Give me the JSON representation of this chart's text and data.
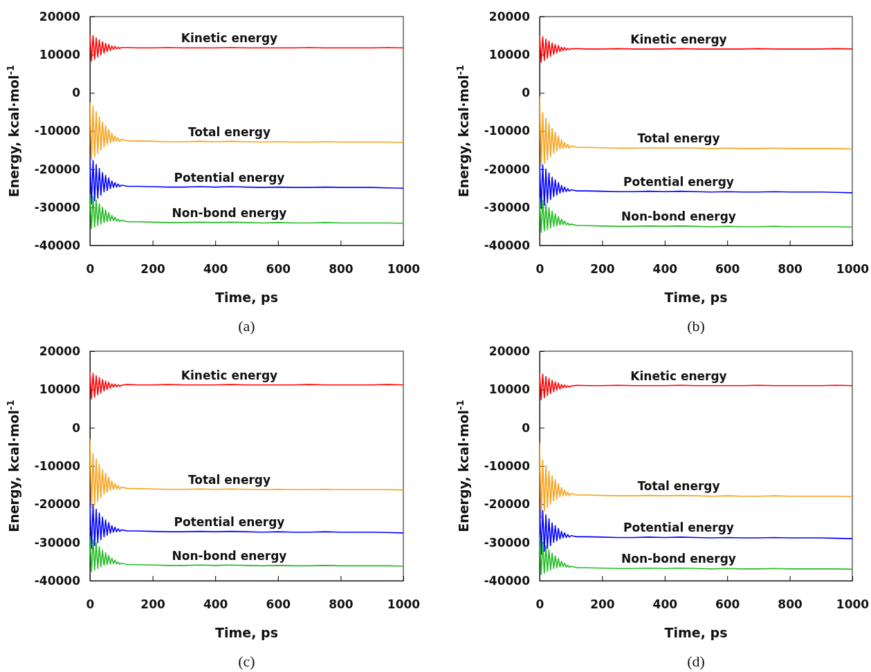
{
  "chart_data": [
    {
      "type": "line",
      "xlabel": "Time, ps",
      "ylabel": "Energy, kcal·mol$^{-1}$",
      "annotations": [
        "(a)"
      ],
      "x": [
        0,
        5,
        10,
        15,
        20,
        25,
        30,
        35,
        40,
        45,
        50,
        55,
        60,
        65,
        70,
        75,
        80,
        85,
        90,
        95,
        100,
        120,
        150,
        200,
        250,
        300,
        350,
        400,
        450,
        500,
        550,
        600,
        650,
        700,
        750,
        800,
        850,
        900,
        950,
        1000
      ],
      "xlim": [
        0,
        1000
      ],
      "xticks": [
        0,
        200,
        400,
        600,
        800,
        1000
      ],
      "ylim": [
        -40000,
        20000
      ],
      "yticks": [
        -40000,
        -30000,
        -20000,
        -10000,
        0,
        10000,
        20000
      ],
      "series": [
        {
          "name": "Kinetic energy",
          "color": "#ff0000",
          "values": [
            15300,
            8300,
            15000,
            8800,
            14400,
            9400,
            13900,
            9900,
            13400,
            10400,
            13000,
            10800,
            12700,
            11100,
            12300,
            11400,
            12200,
            11500,
            12000,
            11600,
            11900,
            11900,
            11800,
            11800,
            11900,
            11800,
            11800,
            11800,
            11900,
            11800,
            11800,
            11800,
            11800,
            11900,
            11800,
            11800,
            11800,
            11800,
            11900,
            11800
          ]
        },
        {
          "name": "Total energy",
          "color": "#f7a21b",
          "values": [
            -2500,
            -17600,
            -3500,
            -16800,
            -4900,
            -15900,
            -6300,
            -15000,
            -7600,
            -14100,
            -8600,
            -13600,
            -9600,
            -13100,
            -10600,
            -12800,
            -11300,
            -12700,
            -11800,
            -12800,
            -12200,
            -12600,
            -12600,
            -12700,
            -12800,
            -12800,
            -12700,
            -12800,
            -12700,
            -12800,
            -12900,
            -12800,
            -12900,
            -12900,
            -12800,
            -12900,
            -12900,
            -12900,
            -12900,
            -13000
          ]
        },
        {
          "name": "Potential energy",
          "color": "#0000ff",
          "values": [
            -17000,
            -29100,
            -17700,
            -28300,
            -18800,
            -27600,
            -19800,
            -26800,
            -20900,
            -26000,
            -21600,
            -25600,
            -22300,
            -25100,
            -23100,
            -24800,
            -23500,
            -24700,
            -23900,
            -24600,
            -24200,
            -24500,
            -24500,
            -24600,
            -24700,
            -24700,
            -24600,
            -24700,
            -24600,
            -24700,
            -24800,
            -24700,
            -24800,
            -24800,
            -24700,
            -24800,
            -24800,
            -24800,
            -24900,
            -25000
          ]
        },
        {
          "name": "Non-bond energy",
          "color": "#22bb22",
          "values": [
            -26500,
            -35600,
            -27200,
            -35200,
            -28100,
            -34800,
            -29100,
            -34400,
            -30000,
            -34000,
            -30700,
            -33800,
            -31400,
            -33600,
            -32100,
            -33500,
            -32600,
            -33600,
            -33100,
            -33700,
            -33400,
            -33800,
            -33800,
            -33900,
            -34000,
            -34000,
            -33900,
            -34000,
            -33900,
            -34000,
            -34100,
            -34000,
            -34100,
            -34100,
            -34000,
            -34100,
            -34100,
            -34100,
            -34100,
            -34200
          ]
        }
      ]
    },
    {
      "type": "line",
      "xlabel": "Time, ps",
      "ylabel": "Energy, kcal·mol$^{-1}$",
      "annotations": [
        "(b)"
      ],
      "x": [
        0,
        5,
        10,
        15,
        20,
        25,
        30,
        35,
        40,
        45,
        50,
        55,
        60,
        65,
        70,
        75,
        80,
        85,
        90,
        95,
        100,
        120,
        150,
        200,
        250,
        300,
        350,
        400,
        450,
        500,
        550,
        600,
        650,
        700,
        750,
        800,
        850,
        900,
        950,
        1000
      ],
      "xlim": [
        0,
        1000
      ],
      "xticks": [
        0,
        200,
        400,
        600,
        800,
        1000
      ],
      "ylim": [
        -40000,
        20000
      ],
      "yticks": [
        -40000,
        -30000,
        -20000,
        -10000,
        0,
        10000,
        20000
      ],
      "series": [
        {
          "name": "Kinetic energy",
          "color": "#ff0000",
          "values": [
            15000,
            8000,
            14700,
            8500,
            14100,
            9100,
            13600,
            9600,
            13100,
            10100,
            12700,
            10500,
            12400,
            10800,
            12000,
            11100,
            11900,
            11200,
            11700,
            11300,
            11600,
            11600,
            11500,
            11500,
            11600,
            11500,
            11500,
            11500,
            11600,
            11500,
            11500,
            11500,
            11500,
            11600,
            11500,
            11500,
            11500,
            11500,
            11600,
            11500
          ]
        },
        {
          "name": "Total energy",
          "color": "#f7a21b",
          "values": [
            -1000,
            -19300,
            -5200,
            -18500,
            -6600,
            -17600,
            -8000,
            -16700,
            -9300,
            -15800,
            -10300,
            -15300,
            -11300,
            -14800,
            -12300,
            -14500,
            -13000,
            -14400,
            -13500,
            -14500,
            -13900,
            -14300,
            -14300,
            -14400,
            -14500,
            -14500,
            -14400,
            -14500,
            -14400,
            -14500,
            -14600,
            -14500,
            -14600,
            -14600,
            -14500,
            -14600,
            -14600,
            -14600,
            -14600,
            -14700
          ]
        },
        {
          "name": "Potential energy",
          "color": "#0000ff",
          "values": [
            -18200,
            -30300,
            -18900,
            -29500,
            -20000,
            -28800,
            -21000,
            -28000,
            -22100,
            -27200,
            -22800,
            -26800,
            -23500,
            -26300,
            -24300,
            -26000,
            -24700,
            -25900,
            -25100,
            -25800,
            -25400,
            -25700,
            -25700,
            -25800,
            -25900,
            -25900,
            -25800,
            -25900,
            -25800,
            -25900,
            -26000,
            -25900,
            -26000,
            -26000,
            -25900,
            -26000,
            -26000,
            -26000,
            -26100,
            -26200
          ]
        },
        {
          "name": "Non-bond energy",
          "color": "#22bb22",
          "values": [
            -27500,
            -36600,
            -28200,
            -36200,
            -29100,
            -35800,
            -30100,
            -35400,
            -31000,
            -35000,
            -31700,
            -34800,
            -32400,
            -34600,
            -33100,
            -34500,
            -33600,
            -34600,
            -34100,
            -34700,
            -34400,
            -34800,
            -34800,
            -34900,
            -35000,
            -35000,
            -34900,
            -35000,
            -34900,
            -35000,
            -35100,
            -35000,
            -35100,
            -35100,
            -35000,
            -35100,
            -35100,
            -35100,
            -35100,
            -35200
          ]
        }
      ]
    },
    {
      "type": "line",
      "xlabel": "Time, ps",
      "ylabel": "Energy, kcal·mol$^{-1}$",
      "annotations": [
        "(c)"
      ],
      "x": [
        0,
        5,
        10,
        15,
        20,
        25,
        30,
        35,
        40,
        45,
        50,
        55,
        60,
        65,
        70,
        75,
        80,
        85,
        90,
        95,
        100,
        120,
        150,
        200,
        250,
        300,
        350,
        400,
        450,
        500,
        550,
        600,
        650,
        700,
        750,
        800,
        850,
        900,
        950,
        1000
      ],
      "xlim": [
        0,
        1000
      ],
      "xticks": [
        0,
        200,
        400,
        600,
        800,
        1000
      ],
      "ylim": [
        -40000,
        20000
      ],
      "yticks": [
        -40000,
        -30000,
        -20000,
        -10000,
        0,
        10000,
        20000
      ],
      "series": [
        {
          "name": "Kinetic energy",
          "color": "#ff0000",
          "values": [
            14500,
            7500,
            14200,
            8000,
            13600,
            8600,
            13100,
            9100,
            12600,
            9600,
            12200,
            10000,
            11900,
            10300,
            11500,
            10600,
            11400,
            10700,
            11200,
            10800,
            11100,
            11300,
            11200,
            11200,
            11300,
            11200,
            11200,
            11200,
            11300,
            11200,
            11200,
            11200,
            11200,
            11300,
            11200,
            11200,
            11200,
            11200,
            11300,
            11200
          ]
        },
        {
          "name": "Total energy",
          "color": "#f7a21b",
          "values": [
            -3000,
            -20900,
            -6800,
            -20100,
            -8200,
            -19200,
            -9600,
            -18300,
            -10900,
            -17400,
            -11900,
            -16900,
            -12900,
            -16400,
            -13900,
            -16100,
            -14600,
            -16000,
            -15100,
            -16100,
            -15500,
            -15900,
            -15900,
            -16000,
            -16100,
            -16100,
            -16000,
            -16100,
            -16000,
            -16100,
            -16200,
            -16100,
            -16200,
            -16200,
            -16100,
            -16200,
            -16200,
            -16200,
            -16200,
            -16300
          ]
        },
        {
          "name": "Potential energy",
          "color": "#0000ff",
          "values": [
            -19500,
            -31600,
            -20200,
            -30800,
            -21300,
            -30100,
            -22300,
            -29300,
            -23400,
            -28500,
            -24100,
            -28100,
            -24800,
            -27600,
            -25600,
            -27300,
            -26000,
            -27200,
            -26400,
            -27100,
            -26700,
            -27000,
            -27000,
            -27100,
            -27200,
            -27200,
            -27100,
            -27200,
            -27100,
            -27200,
            -27300,
            -27200,
            -27300,
            -27300,
            -27200,
            -27300,
            -27300,
            -27300,
            -27400,
            -27500
          ]
        },
        {
          "name": "Non-bond energy",
          "color": "#22bb22",
          "values": [
            -28500,
            -37600,
            -29200,
            -37200,
            -30100,
            -36800,
            -31100,
            -36400,
            -32000,
            -36000,
            -32700,
            -35800,
            -33400,
            -35600,
            -34100,
            -35500,
            -34600,
            -35600,
            -35100,
            -35700,
            -35400,
            -35800,
            -35800,
            -35900,
            -36000,
            -36000,
            -35900,
            -36000,
            -35900,
            -36000,
            -36100,
            -36000,
            -36100,
            -36100,
            -36000,
            -36100,
            -36100,
            -36100,
            -36100,
            -36200
          ]
        }
      ]
    },
    {
      "type": "line",
      "xlabel": "Time, ps",
      "ylabel": "Energy, kcal·mol$^{-1}$",
      "annotations": [
        "(d)"
      ],
      "x": [
        0,
        5,
        10,
        15,
        20,
        25,
        30,
        35,
        40,
        45,
        50,
        55,
        60,
        65,
        70,
        75,
        80,
        85,
        90,
        95,
        100,
        120,
        150,
        200,
        250,
        300,
        350,
        400,
        450,
        500,
        550,
        600,
        650,
        700,
        750,
        800,
        850,
        900,
        950,
        1000
      ],
      "xlim": [
        0,
        1000
      ],
      "xticks": [
        0,
        200,
        400,
        600,
        800,
        1000
      ],
      "ylim": [
        -40000,
        20000
      ],
      "yticks": [
        -40000,
        -30000,
        -20000,
        -10000,
        0,
        10000,
        20000
      ],
      "series": [
        {
          "name": "Kinetic energy",
          "color": "#ff0000",
          "values": [
            14300,
            7300,
            14000,
            7800,
            13400,
            8400,
            12900,
            8900,
            12400,
            9400,
            12000,
            9800,
            11700,
            10100,
            11300,
            10400,
            11200,
            10500,
            11000,
            10600,
            10900,
            11100,
            11000,
            11000,
            11100,
            11000,
            11000,
            11000,
            11100,
            11000,
            11000,
            11000,
            11000,
            11100,
            11000,
            11000,
            11000,
            11000,
            11100,
            11000
          ]
        },
        {
          "name": "Total energy",
          "color": "#f7a21b",
          "values": [
            -4000,
            -23600,
            -8500,
            -21800,
            -9900,
            -20900,
            -11300,
            -20000,
            -12600,
            -19100,
            -13600,
            -18600,
            -14600,
            -18100,
            -15600,
            -17800,
            -16300,
            -17700,
            -16800,
            -17800,
            -17200,
            -17600,
            -17600,
            -17700,
            -17800,
            -17800,
            -17700,
            -17800,
            -17700,
            -17800,
            -17900,
            -17800,
            -17900,
            -17900,
            -17800,
            -17900,
            -17900,
            -17900,
            -17900,
            -18000
          ]
        },
        {
          "name": "Potential energy",
          "color": "#0000ff",
          "values": [
            -19000,
            -33100,
            -21700,
            -32300,
            -22800,
            -31600,
            -23800,
            -30800,
            -24900,
            -30000,
            -25600,
            -29600,
            -26300,
            -29100,
            -27100,
            -28800,
            -27500,
            -28700,
            -27900,
            -28600,
            -28200,
            -28500,
            -28500,
            -28600,
            -28700,
            -28700,
            -28600,
            -28700,
            -28600,
            -28700,
            -28800,
            -28700,
            -28800,
            -28800,
            -28700,
            -28800,
            -28800,
            -28800,
            -28900,
            -29000
          ]
        },
        {
          "name": "Non-bond energy",
          "color": "#22bb22",
          "values": [
            -28000,
            -38400,
            -30000,
            -38000,
            -30900,
            -37600,
            -31900,
            -37200,
            -32800,
            -36800,
            -33500,
            -36600,
            -34200,
            -36400,
            -34900,
            -36300,
            -35400,
            -36400,
            -35900,
            -36500,
            -36200,
            -36600,
            -36600,
            -36700,
            -36800,
            -36800,
            -36700,
            -36800,
            -36700,
            -36800,
            -36900,
            -36800,
            -36900,
            -36900,
            -36800,
            -36900,
            -36900,
            -36900,
            -36900,
            -37000
          ]
        }
      ]
    }
  ]
}
